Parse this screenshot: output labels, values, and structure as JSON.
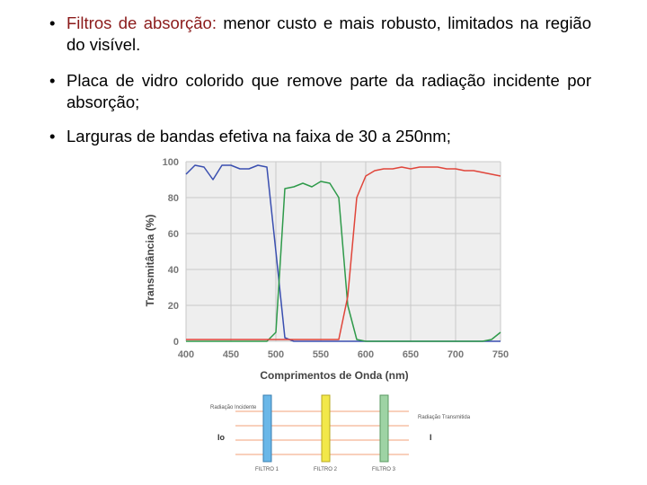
{
  "bullets": [
    {
      "lead": "Filtros de absorção:",
      "text": "menor custo e mais robusto, limitados na região do visível."
    },
    {
      "text": "Placa de vidro colorido que remove parte da radiação incidente por absorção;"
    },
    {
      "text": "Larguras de bandas efetiva na faixa de 30 a 250nm;"
    }
  ],
  "chart_data": {
    "type": "line",
    "xlabel": "Comprimentos de Onda (nm)",
    "ylabel": "Transmitância (%)",
    "x": [
      400,
      410,
      420,
      430,
      440,
      450,
      460,
      470,
      480,
      490,
      500,
      510,
      520,
      530,
      540,
      550,
      560,
      570,
      580,
      590,
      600,
      610,
      620,
      630,
      640,
      650,
      660,
      670,
      680,
      690,
      700,
      710,
      720,
      730,
      740,
      750
    ],
    "series": [
      {
        "color": "#3a4fb0",
        "values": [
          93,
          98,
          97,
          90,
          98,
          98,
          96,
          96,
          98,
          97,
          50,
          2,
          0,
          0,
          0,
          0,
          0,
          0,
          0,
          0,
          0,
          0,
          0,
          0,
          0,
          0,
          0,
          0,
          0,
          0,
          0,
          0,
          0,
          0,
          0,
          0
        ]
      },
      {
        "color": "#2e9a4a",
        "values": [
          0,
          0,
          0,
          0,
          0,
          0,
          0,
          0,
          0,
          0,
          5,
          85,
          86,
          88,
          86,
          89,
          88,
          80,
          20,
          1,
          0,
          0,
          0,
          0,
          0,
          0,
          0,
          0,
          0,
          0,
          0,
          0,
          0,
          0,
          1,
          5
        ]
      },
      {
        "color": "#e0453a",
        "values": [
          1,
          1,
          1,
          1,
          1,
          1,
          1,
          1,
          1,
          1,
          1,
          1,
          1,
          1,
          1,
          1,
          1,
          1,
          25,
          80,
          92,
          95,
          96,
          96,
          97,
          96,
          97,
          97,
          97,
          96,
          96,
          95,
          95,
          94,
          93,
          92
        ]
      }
    ],
    "xlim": [
      400,
      750
    ],
    "ylim": [
      0,
      100
    ],
    "xticks": [
      400,
      450,
      500,
      550,
      600,
      650,
      700,
      750
    ],
    "yticks": [
      0,
      20,
      40,
      60,
      80,
      100
    ],
    "grid": true
  },
  "diagram": {
    "incident": "Radiação Incidente",
    "i0": "Io",
    "transmitted": "Radiação Transmitida",
    "i": "I",
    "filters": [
      "FILTRO 1",
      "FILTRO 2",
      "FILTRO 3"
    ]
  }
}
